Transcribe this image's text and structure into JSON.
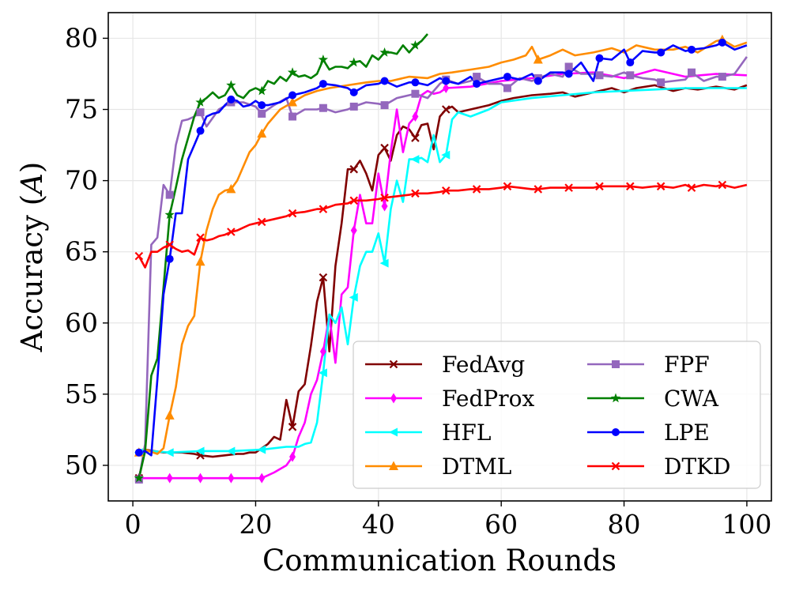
{
  "chart_data": {
    "type": "line",
    "title": "",
    "xlabel": "Communication Rounds",
    "ylabel_prefix": "Accuracy (",
    "ylabel_symbol": "A",
    "ylabel_suffix": ")",
    "xlim": [
      -4,
      104
    ],
    "ylim": [
      47.5,
      81.8
    ],
    "xticks": [
      0,
      20,
      40,
      60,
      80,
      100
    ],
    "yticks": [
      50,
      55,
      60,
      65,
      70,
      75,
      80
    ],
    "grid": true,
    "legend_position": "bottom-right",
    "legend_columns": 2,
    "series": [
      {
        "name": "FedAvg",
        "color": "#800000",
        "marker": "x",
        "x": [
          1,
          2,
          5,
          8,
          10,
          11,
          13,
          15,
          17,
          18,
          19,
          20,
          22,
          23,
          24,
          25,
          26,
          27,
          28,
          29,
          30,
          31,
          32,
          33,
          34,
          35,
          36,
          37,
          38,
          39,
          40,
          41,
          42,
          43,
          44,
          45,
          46,
          47,
          48,
          49,
          50,
          51,
          52,
          53,
          55,
          58,
          60,
          62,
          65,
          68,
          70,
          72,
          75,
          78,
          80,
          82,
          85,
          88,
          90,
          92,
          95,
          98,
          100
        ],
        "y": [
          49.1,
          51.1,
          50.9,
          50.9,
          50.8,
          50.7,
          50.6,
          50.7,
          50.8,
          50.8,
          50.9,
          50.9,
          51.5,
          52.0,
          51.8,
          54.6,
          52.7,
          55.2,
          55.7,
          58.4,
          61.5,
          63.2,
          58.0,
          64.0,
          67.0,
          70.8,
          70.8,
          71.4,
          70.5,
          69.3,
          71.8,
          72.3,
          71.4,
          73.2,
          73.8,
          73.6,
          73.0,
          73.9,
          74.0,
          72.2,
          74.5,
          75.0,
          75.2,
          74.8,
          75.0,
          75.3,
          75.6,
          75.8,
          76.0,
          76.1,
          76.2,
          75.9,
          76.2,
          76.5,
          76.2,
          76.5,
          76.7,
          76.3,
          76.5,
          76.4,
          76.6,
          76.4,
          76.7
        ]
      },
      {
        "name": "FedProx",
        "color": "#ff00ff",
        "marker": "d",
        "x": [
          1,
          6,
          11,
          16,
          21,
          23,
          25,
          26,
          27,
          28,
          29,
          30,
          31,
          32,
          33,
          34,
          35,
          36,
          37,
          38,
          39,
          40,
          41,
          42,
          43,
          44,
          45,
          46,
          47,
          48,
          49,
          50,
          51,
          55,
          60,
          65,
          70,
          75,
          80,
          85,
          90,
          95,
          100
        ],
        "y": [
          49.1,
          49.1,
          49.1,
          49.1,
          49.1,
          49.5,
          50.0,
          50.6,
          52.0,
          53.0,
          55.0,
          56.0,
          58.0,
          60.5,
          57.2,
          62.0,
          62.5,
          66.5,
          69.0,
          67.0,
          67.0,
          70.5,
          68.2,
          72.0,
          75.0,
          72.0,
          74.0,
          74.5,
          76.0,
          76.3,
          76.1,
          76.2,
          76.5,
          76.6,
          77.0,
          77.2,
          77.5,
          77.6,
          77.2,
          77.8,
          77.3,
          77.5,
          77.4
        ]
      },
      {
        "name": "HFL",
        "color": "#00ffff",
        "marker": "<",
        "x": [
          1,
          2,
          3,
          6,
          11,
          16,
          21,
          25,
          27,
          28,
          29,
          30,
          31,
          32,
          33,
          34,
          35,
          36,
          37,
          38,
          39,
          40,
          41,
          42,
          43,
          44,
          45,
          46,
          47,
          48,
          49,
          50,
          51,
          52,
          53,
          55,
          58,
          60,
          65,
          70,
          75,
          80,
          85,
          90,
          95,
          100
        ],
        "y": [
          50.9,
          51.0,
          51.0,
          50.9,
          51.0,
          51.0,
          51.1,
          51.3,
          51.3,
          51.5,
          51.6,
          53.0,
          56.5,
          60.6,
          60.0,
          61.1,
          58.5,
          61.8,
          64.0,
          65.0,
          65.0,
          66.3,
          64.2,
          68.0,
          70.0,
          68.5,
          71.5,
          71.5,
          71.6,
          71.3,
          73.2,
          71.3,
          71.8,
          74.3,
          74.8,
          74.5,
          75.0,
          75.5,
          75.8,
          76.0,
          76.2,
          76.3,
          76.4,
          76.5,
          76.5,
          76.5
        ]
      },
      {
        "name": "DTML",
        "color": "#ff8c00",
        "marker": "^",
        "x": [
          1,
          2,
          4,
          5,
          6,
          7,
          8,
          9,
          10,
          11,
          12,
          13,
          14,
          15,
          16,
          17,
          18,
          19,
          20,
          21,
          22,
          24,
          26,
          28,
          30,
          32,
          35,
          38,
          40,
          42,
          45,
          48,
          50,
          52,
          55,
          58,
          60,
          62,
          64,
          65,
          66,
          68,
          70,
          72,
          75,
          78,
          80,
          82,
          85,
          88,
          90,
          92,
          95,
          96,
          98,
          100
        ],
        "y": [
          50.9,
          51.1,
          50.8,
          51.2,
          53.5,
          55.5,
          58.5,
          59.8,
          60.5,
          64.3,
          66.5,
          68.0,
          69.0,
          69.3,
          69.4,
          70.0,
          71.0,
          72.0,
          72.5,
          73.3,
          74.0,
          75.0,
          75.5,
          76.0,
          76.3,
          76.5,
          76.7,
          76.9,
          77.0,
          77.0,
          77.3,
          77.2,
          77.5,
          77.6,
          77.8,
          78.0,
          78.3,
          78.5,
          78.8,
          79.4,
          78.5,
          78.8,
          79.2,
          78.8,
          79.0,
          79.3,
          79.0,
          79.5,
          79.2,
          79.2,
          79.4,
          79.0,
          79.8,
          79.9,
          79.4,
          79.7
        ]
      },
      {
        "name": "FPF",
        "color": "#9467bd",
        "marker": "s",
        "x": [
          1,
          2,
          3,
          4,
          5,
          6,
          7,
          8,
          9,
          10,
          11,
          12,
          14,
          16,
          18,
          20,
          21,
          23,
          25,
          26,
          28,
          30,
          31,
          33,
          35,
          36,
          38,
          40,
          41,
          43,
          45,
          46,
          48,
          50,
          51,
          53,
          55,
          56,
          58,
          60,
          61,
          63,
          65,
          66,
          68,
          70,
          71,
          73,
          75,
          76,
          78,
          80,
          81,
          83,
          85,
          86,
          88,
          90,
          91,
          93,
          95,
          96,
          98,
          100
        ],
        "y": [
          49.0,
          51.5,
          65.5,
          66.0,
          69.7,
          69.0,
          72.5,
          74.2,
          74.3,
          74.5,
          74.8,
          73.8,
          75.0,
          75.5,
          75.5,
          75.2,
          74.7,
          75.3,
          75.8,
          74.5,
          75.0,
          75.0,
          75.1,
          74.8,
          75.0,
          75.2,
          75.5,
          75.4,
          75.3,
          75.8,
          76.0,
          76.1,
          75.8,
          76.8,
          77.1,
          76.8,
          77.0,
          77.3,
          76.8,
          76.8,
          76.5,
          77.2,
          77.0,
          77.2,
          77.5,
          77.3,
          78.0,
          77.5,
          77.5,
          77.4,
          77.3,
          77.6,
          77.4,
          77.2,
          77.1,
          76.9,
          77.0,
          77.1,
          77.6,
          77.0,
          77.3,
          77.3,
          77.5,
          78.7
        ]
      },
      {
        "name": "CWA",
        "color": "#008000",
        "marker": "*",
        "x": [
          1,
          2,
          3,
          4,
          5,
          6,
          7,
          8,
          9,
          10,
          11,
          12,
          13,
          14,
          15,
          16,
          17,
          18,
          19,
          20,
          21,
          22,
          23,
          24,
          25,
          26,
          27,
          28,
          29,
          30,
          31,
          32,
          33,
          34,
          35,
          36,
          37,
          38,
          39,
          40,
          41,
          42,
          43,
          44,
          45,
          46,
          47,
          48
        ],
        "y": [
          49.1,
          51.0,
          56.3,
          57.5,
          62.5,
          67.6,
          69.5,
          71.5,
          73.0,
          74.5,
          75.5,
          75.8,
          76.2,
          75.8,
          76.0,
          76.7,
          76.0,
          75.8,
          76.3,
          76.5,
          76.3,
          77.0,
          76.8,
          77.3,
          77.0,
          77.6,
          77.3,
          77.4,
          77.2,
          77.5,
          78.5,
          77.8,
          78.0,
          78.0,
          77.9,
          78.3,
          78.4,
          78.0,
          78.8,
          78.5,
          79.0,
          79.0,
          78.9,
          79.5,
          79.0,
          79.5,
          79.8,
          80.3
        ]
      },
      {
        "name": "LPE",
        "color": "#0000ff",
        "marker": "o",
        "x": [
          1,
          2,
          3,
          4,
          5,
          6,
          7,
          8,
          9,
          10,
          11,
          12,
          13,
          14,
          15,
          16,
          17,
          18,
          19,
          20,
          21,
          22,
          24,
          26,
          28,
          30,
          31,
          33,
          35,
          36,
          38,
          40,
          41,
          43,
          45,
          46,
          48,
          50,
          51,
          53,
          55,
          56,
          58,
          60,
          61,
          63,
          65,
          66,
          68,
          70,
          71,
          73,
          75,
          76,
          78,
          80,
          81,
          83,
          85,
          86,
          88,
          90,
          91,
          93,
          95,
          96,
          98,
          100
        ],
        "y": [
          50.9,
          51.0,
          50.7,
          56.0,
          62.0,
          64.5,
          67.7,
          67.7,
          71.5,
          72.5,
          73.5,
          74.5,
          74.7,
          74.8,
          75.3,
          75.7,
          75.6,
          75.2,
          75.3,
          75.6,
          75.3,
          75.3,
          75.5,
          76.0,
          76.2,
          76.5,
          76.8,
          76.7,
          76.5,
          76.2,
          76.7,
          76.8,
          77.0,
          76.6,
          76.9,
          76.9,
          76.7,
          77.2,
          77.0,
          76.8,
          77.3,
          76.8,
          77.0,
          77.2,
          77.3,
          77.1,
          77.5,
          77.0,
          77.6,
          77.6,
          77.5,
          78.3,
          77.0,
          78.6,
          78.5,
          79.2,
          78.3,
          79.1,
          79.0,
          79.0,
          79.5,
          79.1,
          79.2,
          79.3,
          79.5,
          79.7,
          79.2,
          79.5
        ]
      },
      {
        "name": "DTKD",
        "color": "#ff0000",
        "marker": "x",
        "x": [
          1,
          2,
          3,
          4,
          5,
          6,
          7,
          8,
          9,
          10,
          11,
          12,
          13,
          14,
          15,
          16,
          17,
          18,
          19,
          20,
          21,
          23,
          25,
          26,
          28,
          30,
          31,
          33,
          35,
          36,
          38,
          40,
          41,
          43,
          45,
          46,
          48,
          50,
          51,
          53,
          55,
          56,
          58,
          60,
          61,
          63,
          65,
          66,
          68,
          70,
          71,
          73,
          75,
          76,
          78,
          80,
          81,
          83,
          85,
          86,
          88,
          90,
          91,
          93,
          95,
          96,
          98,
          100
        ],
        "y": [
          64.7,
          63.9,
          65.0,
          65.0,
          65.3,
          65.5,
          65.2,
          65.0,
          65.1,
          64.8,
          66.0,
          65.8,
          65.9,
          66.1,
          66.2,
          66.4,
          66.5,
          66.7,
          66.9,
          67.0,
          67.1,
          67.3,
          67.5,
          67.7,
          67.8,
          68.0,
          68.0,
          68.3,
          68.4,
          68.6,
          68.6,
          68.7,
          68.8,
          68.9,
          69.0,
          69.1,
          69.1,
          69.2,
          69.3,
          69.3,
          69.4,
          69.4,
          69.4,
          69.5,
          69.6,
          69.5,
          69.4,
          69.4,
          69.5,
          69.5,
          69.5,
          69.5,
          69.5,
          69.6,
          69.6,
          69.6,
          69.6,
          69.5,
          69.6,
          69.6,
          69.5,
          69.7,
          69.5,
          69.7,
          69.6,
          69.7,
          69.5,
          69.7
        ]
      }
    ]
  }
}
